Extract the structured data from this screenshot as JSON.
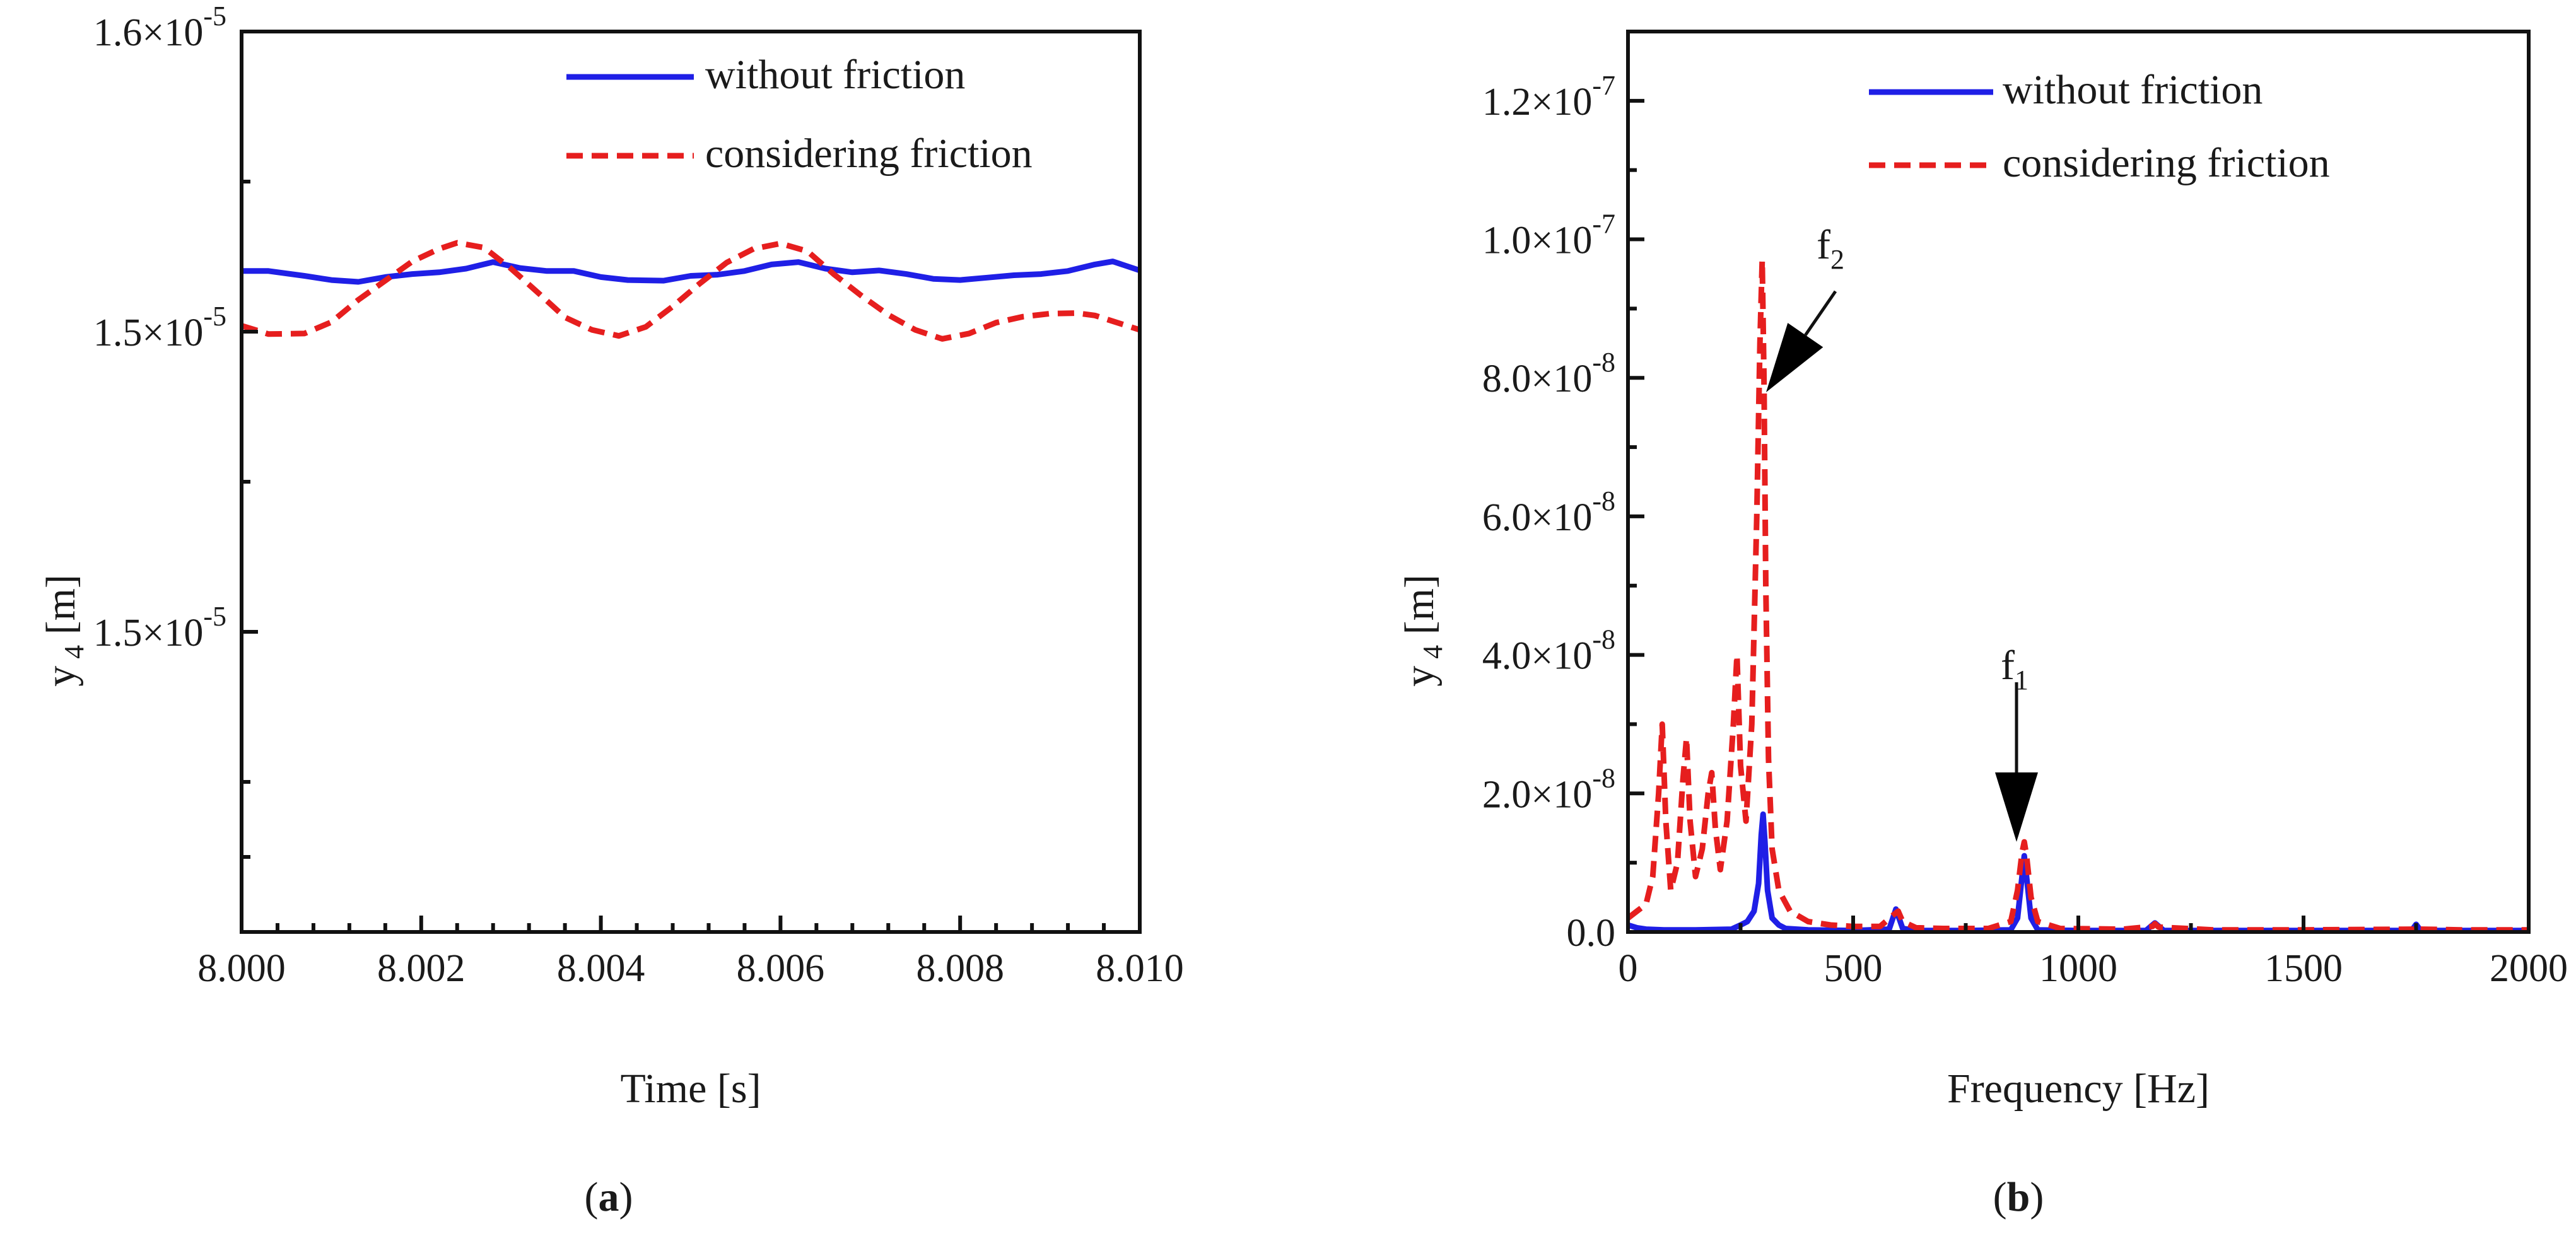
{
  "chart_data": [
    {
      "panel": "a",
      "type": "line",
      "title": "",
      "xlabel": "Time [s]",
      "ylabel": "y 4 [m]",
      "ylabel_parts": {
        "base": "y",
        "sub": "4",
        "unit": " [m]"
      },
      "xlim": [
        8.0,
        8.01
      ],
      "ylim": [
        1.45e-05,
        1.6e-05
      ],
      "x_ticks": [
        8.0,
        8.002,
        8.004,
        8.006,
        8.008,
        8.01
      ],
      "x_tick_labels": [
        "8.000",
        "8.002",
        "8.004",
        "8.006",
        "8.008",
        "8.010"
      ],
      "y_ticks": [
        1.5e-05,
        1.55e-05,
        1.6e-05
      ],
      "y_tick_labels": [
        {
          "mant": "1.5×10",
          "exp": "-5"
        },
        {
          "mant": "1.5×10",
          "exp": "-5"
        },
        {
          "mant": "1.6×10",
          "exp": "-5"
        }
      ],
      "legend": {
        "position": "top-right"
      },
      "series": [
        {
          "name": "without friction",
          "color": "#1f1fe6",
          "dash": "solid",
          "x": [
            8.0,
            8.0003,
            8.0007,
            8.001,
            8.0013,
            8.0016,
            8.0019,
            8.0022,
            8.0025,
            8.0028,
            8.0031,
            8.0034,
            8.0037,
            8.004,
            8.0043,
            8.0047,
            8.005,
            8.0053,
            8.0056,
            8.0059,
            8.0062,
            8.0065,
            8.0068,
            8.0071,
            8.0074,
            8.0077,
            8.008,
            8.0083,
            8.0086,
            8.0089,
            8.0092,
            8.0095,
            8.0097,
            8.01
          ],
          "y": [
            1.5601e-05,
            1.5601e-05,
            1.5593e-05,
            1.5586e-05,
            1.5583e-05,
            1.5591e-05,
            1.5596e-05,
            1.5599e-05,
            1.5605e-05,
            1.5616e-05,
            1.5606e-05,
            1.5601e-05,
            1.5601e-05,
            1.5591e-05,
            1.5586e-05,
            1.5585e-05,
            1.5593e-05,
            1.5595e-05,
            1.5601e-05,
            1.5612e-05,
            1.5616e-05,
            1.5605e-05,
            1.5599e-05,
            1.5602e-05,
            1.5596e-05,
            1.5588e-05,
            1.5586e-05,
            1.559e-05,
            1.5594e-05,
            1.5596e-05,
            1.5601e-05,
            1.5612e-05,
            1.5617e-05,
            1.5602e-05
          ]
        },
        {
          "name": "considering friction",
          "color": "#e61e1e",
          "dash": "dashed",
          "x": [
            8.0,
            8.0003,
            8.0007,
            8.001,
            8.0013,
            8.0016,
            8.0019,
            8.0022,
            8.0024,
            8.0027,
            8.003,
            8.0033,
            8.0036,
            8.0039,
            8.0042,
            8.0045,
            8.0048,
            8.0051,
            8.0054,
            8.0057,
            8.006,
            8.0063,
            8.0066,
            8.0069,
            8.0072,
            8.0075,
            8.0078,
            8.0081,
            8.0084,
            8.0087,
            8.009,
            8.0093,
            8.0095,
            8.01
          ],
          "y": [
            1.551e-05,
            1.5496e-05,
            1.5497e-05,
            1.5516e-05,
            1.5553e-05,
            1.5585e-05,
            1.5617e-05,
            1.5638e-05,
            1.5648e-05,
            1.564e-05,
            1.5605e-05,
            1.5565e-05,
            1.5524e-05,
            1.5503e-05,
            1.5493e-05,
            1.5508e-05,
            1.5542e-05,
            1.558e-05,
            1.5615e-05,
            1.5638e-05,
            1.5647e-05,
            1.5634e-05,
            1.5595e-05,
            1.556e-05,
            1.5528e-05,
            1.5503e-05,
            1.5488e-05,
            1.5497e-05,
            1.5515e-05,
            1.5525e-05,
            1.553e-05,
            1.5531e-05,
            1.5527e-05,
            1.5503e-05
          ]
        }
      ]
    },
    {
      "panel": "b",
      "type": "line",
      "title": "",
      "xlabel": "Frequency [Hz]",
      "ylabel": "y 4 [m]",
      "ylabel_parts": {
        "base": "y",
        "sub": "4",
        "unit": " [m]"
      },
      "xlim": [
        0,
        2000
      ],
      "ylim": [
        0,
        1.3e-07
      ],
      "x_ticks": [
        0,
        500,
        1000,
        1500,
        2000
      ],
      "x_tick_labels": [
        "0",
        "500",
        "1000",
        "1500",
        "2000"
      ],
      "y_ticks": [
        0,
        2e-08,
        4e-08,
        6e-08,
        8e-08,
        1e-07,
        1.2e-07
      ],
      "y_tick_labels": [
        {
          "mant": "0.0",
          "exp": ""
        },
        {
          "mant": "2.0×10",
          "exp": "-8"
        },
        {
          "mant": "4.0×10",
          "exp": "-8"
        },
        {
          "mant": "6.0×10",
          "exp": "-8"
        },
        {
          "mant": "8.0×10",
          "exp": "-8"
        },
        {
          "mant": "1.0×10",
          "exp": "-7"
        },
        {
          "mant": "1.2×10",
          "exp": "-7"
        }
      ],
      "legend": {
        "position": "top-right"
      },
      "annotations": [
        {
          "base": "f",
          "sub": "2",
          "x": 300,
          "y": 7.7e-08
        },
        {
          "base": "f",
          "sub": "1",
          "x": 880,
          "y": 1.2e-08
        }
      ],
      "series": [
        {
          "name": "without friction",
          "color": "#1f1fe6",
          "dash": "solid",
          "x": [
            0,
            20,
            40,
            80,
            150,
            230,
            250,
            265,
            280,
            290,
            296,
            300,
            304,
            310,
            320,
            335,
            350,
            400,
            500,
            580,
            595,
            610,
            640,
            750,
            850,
            865,
            880,
            895,
            910,
            1000,
            1150,
            1170,
            1190,
            1250,
            1500,
            1740,
            1750,
            1760,
            1800,
            2000
          ],
          "y": [
            1e-09,
            6e-10,
            4e-10,
            3e-10,
            3e-10,
            4e-10,
            1e-09,
            1.5e-09,
            3e-09,
            7e-09,
            1.4e-08,
            1.7e-08,
            1.3e-08,
            6e-09,
            2e-09,
            1e-09,
            5e-10,
            3e-10,
            2e-10,
            4e-10,
            3.3e-09,
            5e-10,
            2e-10,
            2e-10,
            3e-10,
            2e-09,
            1.1e-08,
            2e-09,
            3e-10,
            2e-10,
            2e-10,
            1.3e-09,
            2e-10,
            2e-10,
            2e-10,
            2e-10,
            1.1e-09,
            2e-10,
            2e-10,
            2e-10
          ]
        },
        {
          "name": "considering friction",
          "color": "#e61e1e",
          "dash": "dashed",
          "x": [
            0,
            20,
            40,
            55,
            68,
            76,
            84,
            95,
            110,
            122,
            130,
            138,
            150,
            165,
            178,
            186,
            194,
            205,
            220,
            234,
            242,
            250,
            262,
            275,
            286,
            293,
            298,
            302,
            306,
            312,
            320,
            335,
            360,
            400,
            450,
            500,
            560,
            590,
            600,
            610,
            640,
            700,
            800,
            850,
            865,
            875,
            880,
            885,
            895,
            910,
            960,
            1100,
            1165,
            1170,
            1178,
            1300,
            1500,
            1745,
            1750,
            1758,
            1850,
            2000
          ],
          "y": [
            2e-09,
            3e-09,
            4e-09,
            8e-09,
            2e-08,
            3e-08,
            1.6e-08,
            6e-09,
            1e-08,
            2.2e-08,
            2.8e-08,
            1.6e-08,
            8e-09,
            1.2e-08,
            2e-08,
            2.3e-08,
            1.5e-08,
            9e-09,
            1.6e-08,
            3e-08,
            4e-08,
            2.4e-08,
            1.6e-08,
            3e-08,
            6e-08,
            8.5e-08,
            9.7e-08,
            8e-08,
            5e-08,
            2.5e-08,
            1.2e-08,
            6e-09,
            3e-09,
            1.5e-09,
            1e-09,
            8e-10,
            8e-10,
            2.5e-09,
            3e-09,
            1.5e-09,
            6e-10,
            5e-10,
            5e-10,
            1.5e-09,
            6e-09,
            1.15e-08,
            1.3e-08,
            1.1e-08,
            5e-09,
            1.5e-09,
            5e-10,
            4e-10,
            8e-10,
            1.2e-09,
            7e-10,
            3e-10,
            3e-10,
            4e-10,
            9e-10,
            4e-10,
            3e-10,
            3e-10
          ]
        }
      ]
    }
  ],
  "panel_labels": [
    "a",
    "b"
  ]
}
